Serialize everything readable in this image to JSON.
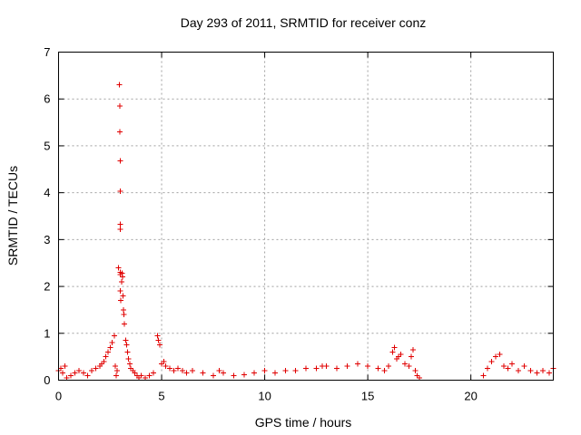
{
  "chart_data": {
    "type": "scatter",
    "title": "Day 293 of 2011, SRMTID for receiver conz",
    "xlabel": "GPS time / hours",
    "ylabel": "SRMTID / TECUs",
    "xlim": [
      0,
      24
    ],
    "ylim": [
      0,
      7
    ],
    "xticks": [
      0,
      5,
      10,
      15,
      20
    ],
    "xtick_labels": [
      "0",
      "5",
      "10",
      "15",
      "20"
    ],
    "yticks": [
      0,
      1,
      2,
      3,
      4,
      5,
      6,
      7
    ],
    "ytick_labels": [
      "0",
      "1",
      "2",
      "3",
      "4",
      "5",
      "6",
      "7"
    ],
    "grid": true,
    "legend": "none",
    "marker": "plus",
    "color": "#e00000",
    "series": [
      {
        "x": [
          0.0,
          0.1,
          0.2,
          0.3,
          0.4,
          0.6,
          0.8,
          1.0,
          1.2,
          1.4,
          1.6,
          1.8,
          2.0,
          2.1,
          2.2,
          2.3,
          2.4,
          2.5,
          2.6,
          2.7,
          2.75,
          2.8,
          2.85,
          2.9,
          2.95,
          2.97,
          2.98,
          3.0,
          3.0,
          3.0,
          3.0,
          3.0,
          3.0,
          3.0,
          3.02,
          3.05,
          3.08,
          3.1,
          3.12,
          3.15,
          3.18,
          3.2,
          3.25,
          3.3,
          3.35,
          3.4,
          3.45,
          3.5,
          3.6,
          3.7,
          3.8,
          3.9,
          4.0,
          4.2,
          4.4,
          4.6,
          4.8,
          4.85,
          4.9,
          5.0,
          5.1,
          5.2,
          5.4,
          5.6,
          5.8,
          6.0,
          6.2,
          6.5,
          7.0,
          7.5,
          7.8,
          8.0,
          8.5,
          9.0,
          9.5,
          10.0,
          10.5,
          11.0,
          11.5,
          12.0,
          12.5,
          12.8,
          13.0,
          13.5,
          14.0,
          14.5,
          15.0,
          15.5,
          15.8,
          16.0,
          16.2,
          16.3,
          16.4,
          16.5,
          16.6,
          16.8,
          17.0,
          17.1,
          17.2,
          17.3,
          17.4,
          17.5,
          20.6,
          20.8,
          21.0,
          21.2,
          21.4,
          21.6,
          21.8,
          22.0,
          22.3,
          22.6,
          22.9,
          23.2,
          23.5,
          23.8,
          24.0
        ],
        "y": [
          0.2,
          0.25,
          0.15,
          0.3,
          0.05,
          0.1,
          0.15,
          0.2,
          0.15,
          0.1,
          0.2,
          0.25,
          0.3,
          0.35,
          0.4,
          0.5,
          0.6,
          0.7,
          0.8,
          0.95,
          0.3,
          0.1,
          0.2,
          2.4,
          6.3,
          5.85,
          5.3,
          4.68,
          4.03,
          3.33,
          3.22,
          2.3,
          2.25,
          1.9,
          1.7,
          2.1,
          2.28,
          2.2,
          1.8,
          1.5,
          1.4,
          1.2,
          0.85,
          0.75,
          0.6,
          0.45,
          0.35,
          0.25,
          0.2,
          0.15,
          0.1,
          0.05,
          0.1,
          0.05,
          0.1,
          0.15,
          0.95,
          0.85,
          0.75,
          0.35,
          0.4,
          0.3,
          0.25,
          0.2,
          0.25,
          0.2,
          0.15,
          0.2,
          0.15,
          0.1,
          0.2,
          0.15,
          0.1,
          0.12,
          0.15,
          0.2,
          0.15,
          0.2,
          0.2,
          0.25,
          0.25,
          0.3,
          0.3,
          0.25,
          0.3,
          0.35,
          0.3,
          0.25,
          0.2,
          0.3,
          0.6,
          0.7,
          0.45,
          0.5,
          0.55,
          0.35,
          0.3,
          0.5,
          0.65,
          0.2,
          0.1,
          0.05,
          0.1,
          0.25,
          0.4,
          0.5,
          0.55,
          0.3,
          0.25,
          0.35,
          0.2,
          0.3,
          0.2,
          0.15,
          0.2,
          0.15,
          0.25
        ]
      }
    ]
  }
}
